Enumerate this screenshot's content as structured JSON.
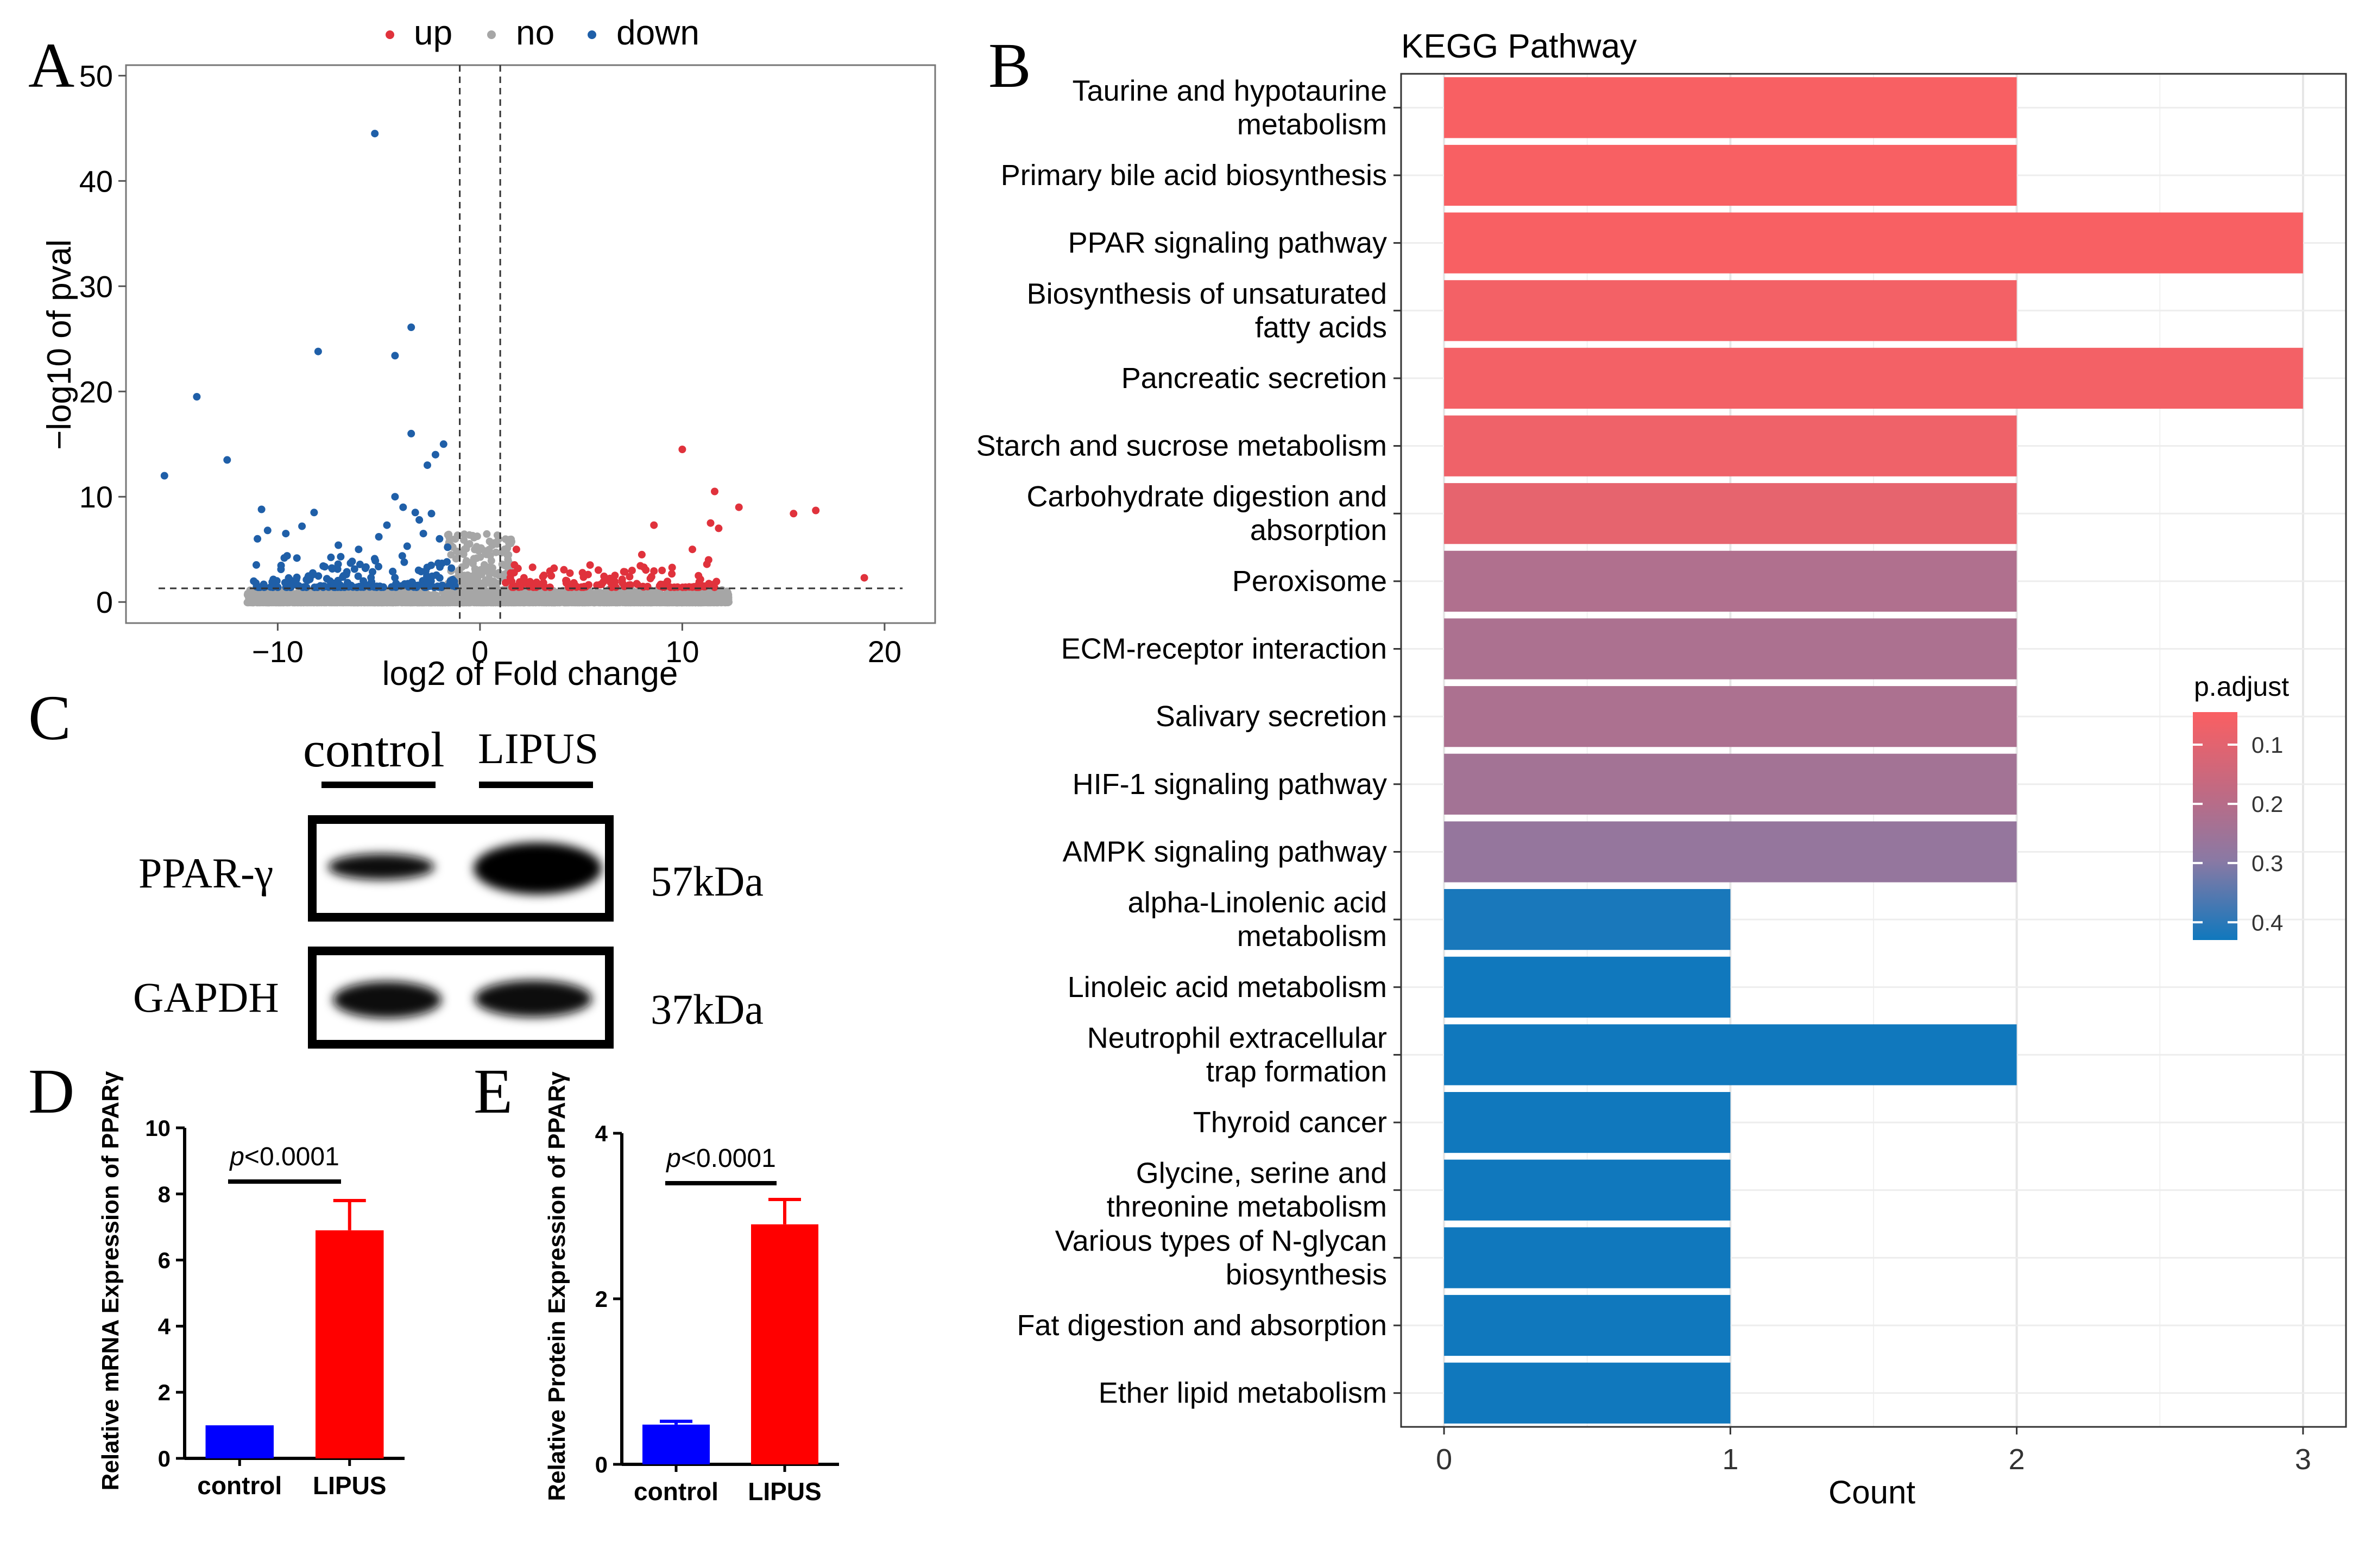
{
  "panel_letters": {
    "a": "A",
    "b": "B",
    "c": "C",
    "d": "D",
    "e": "E"
  },
  "colors": {
    "up": "#e0323c",
    "no": "#a6a6a6",
    "down": "#1f5fa8",
    "padj_low": "#fa5f62",
    "padj_high": "#1078bd",
    "bar_red": "#ff0000",
    "bar_blue": "#0000ff"
  },
  "chart_data": [
    {
      "id": "A",
      "type": "scatter",
      "title": "",
      "xlabel": "log2 of Fold change",
      "ylabel": "−log10 of pval",
      "xlim": [
        -17.5,
        22.5
      ],
      "ylim": [
        -2,
        51
      ],
      "xticks": [
        -10,
        0,
        10,
        20
      ],
      "yticks": [
        0,
        10,
        20,
        30,
        40,
        50
      ],
      "xtick_labels": [
        "−10",
        "0",
        "10",
        "20"
      ],
      "ytick_labels": [
        "0",
        "10",
        "20",
        "30",
        "40",
        "50"
      ],
      "thresholds": {
        "x": [
          -1,
          1
        ],
        "y": 1.3
      },
      "legend": [
        {
          "name": "up",
          "color": "#e0323c"
        },
        {
          "name": "no",
          "color": "#a6a6a6"
        },
        {
          "name": "down",
          "color": "#1f5fa8"
        }
      ],
      "highlight_points": [
        [
          -5.2,
          44.5
        ],
        [
          -3.4,
          26.1
        ],
        [
          -8.0,
          23.8
        ],
        [
          -4.2,
          23.4
        ],
        [
          -14.0,
          19.5
        ],
        [
          -15.6,
          12.0
        ],
        [
          -12.5,
          13.5
        ],
        [
          -3.4,
          16.0
        ],
        [
          -2.2,
          14.0
        ],
        [
          -2.6,
          13.0
        ],
        [
          -1.8,
          15.0
        ],
        [
          -10.8,
          8.8
        ],
        [
          -10.5,
          6.8
        ],
        [
          -9.6,
          6.5
        ],
        [
          -8.8,
          7.2
        ],
        [
          -8.2,
          8.5
        ],
        [
          -5.0,
          6.2
        ],
        [
          -4.6,
          7.3
        ],
        [
          -4.2,
          10.0
        ],
        [
          -3.8,
          9.0
        ],
        [
          -3.0,
          7.8
        ],
        [
          -2.8,
          6.5
        ],
        [
          -2.0,
          6.0
        ],
        [
          -1.6,
          5.2
        ],
        [
          -11.0,
          6.0
        ],
        [
          -7.0,
          5.4
        ],
        [
          -6.0,
          5.0
        ],
        [
          -3.6,
          5.3
        ],
        [
          -3.2,
          8.5
        ],
        [
          -2.4,
          8.4
        ],
        [
          10.0,
          14.5
        ],
        [
          11.6,
          10.5
        ],
        [
          12.8,
          9.0
        ],
        [
          11.4,
          7.5
        ],
        [
          11.8,
          7.0
        ],
        [
          15.5,
          8.4
        ],
        [
          16.6,
          8.7
        ],
        [
          19.0,
          2.3
        ],
        [
          8.6,
          7.3
        ],
        [
          8.0,
          4.5
        ],
        [
          11.3,
          4.0
        ],
        [
          10.5,
          5.0
        ],
        [
          1.8,
          5.0
        ],
        [
          2.6,
          3.3
        ],
        [
          9.0,
          3.0
        ],
        [
          10.8,
          2.5
        ]
      ]
    },
    {
      "id": "B",
      "type": "bar",
      "orientation": "horizontal",
      "title": "KEGG Pathway",
      "xlabel": "Count",
      "ylabel": "",
      "xlim": [
        -0.15,
        3.15
      ],
      "xticks": [
        0,
        1,
        2,
        3
      ],
      "categories": [
        "Taurine and hypotaurine metabolism",
        "Primary bile acid biosynthesis",
        "PPAR signaling pathway",
        "Biosynthesis of unsaturated fatty acids",
        "Pancreatic secretion",
        "Starch and sucrose metabolism",
        "Carbohydrate digestion and absorption",
        "Peroxisome",
        "ECM-receptor interaction",
        "Salivary secretion",
        "HIF-1 signaling pathway",
        "AMPK signaling pathway",
        "alpha-Linolenic acid metabolism",
        "Linoleic acid metabolism",
        "Neutrophil extracellular trap formation",
        "Thyroid cancer",
        "Glycine, serine and threonine metabolism",
        "Various types of N-glycan biosynthesis",
        "Fat digestion and absorption",
        "Ether lipid metabolism"
      ],
      "label_lines": [
        [
          "Taurine and hypotaurine",
          "metabolism"
        ],
        [
          "Primary bile acid biosynthesis"
        ],
        [
          "PPAR signaling pathway"
        ],
        [
          "Biosynthesis of unsaturated",
          "fatty acids"
        ],
        [
          "Pancreatic secretion"
        ],
        [
          "Starch and sucrose metabolism"
        ],
        [
          "Carbohydrate digestion and",
          "absorption"
        ],
        [
          "Peroxisome"
        ],
        [
          "ECM-receptor interaction"
        ],
        [
          "Salivary secretion"
        ],
        [
          "HIF-1 signaling pathway"
        ],
        [
          "AMPK signaling pathway"
        ],
        [
          "alpha-Linolenic acid",
          "metabolism"
        ],
        [
          "Linoleic acid metabolism"
        ],
        [
          "Neutrophil extracellular",
          "trap formation"
        ],
        [
          "Thyroid cancer"
        ],
        [
          "Glycine, serine and",
          "threonine metabolism"
        ],
        [
          "Various types of N-glycan",
          "biosynthesis"
        ],
        [
          "Fat digestion and absorption"
        ],
        [
          "Ether lipid metabolism"
        ]
      ],
      "values": [
        2,
        2,
        3,
        2,
        3,
        2,
        2,
        2,
        2,
        2,
        2,
        2,
        1,
        1,
        2,
        1,
        1,
        1,
        1,
        1
      ],
      "p_adjust": [
        0.05,
        0.05,
        0.05,
        0.06,
        0.06,
        0.07,
        0.09,
        0.21,
        0.22,
        0.22,
        0.24,
        0.27,
        0.42,
        0.43,
        0.43,
        0.43,
        0.43,
        0.43,
        0.43,
        0.43
      ],
      "legend": {
        "title": "p.adjust",
        "placement": "right",
        "range": [
          0.045,
          0.43
        ],
        "ticks": [
          0.1,
          0.2,
          0.3,
          0.4
        ],
        "tick_labels": [
          "0.1",
          "0.2",
          "0.3",
          "0.4"
        ]
      },
      "grid": true
    },
    {
      "id": "D",
      "type": "bar",
      "title": "",
      "ylabel": "Relative mRNA Expression of PPARγ",
      "categories": [
        "control",
        "LIPUS"
      ],
      "values": [
        1.0,
        6.9
      ],
      "errors": [
        0.0,
        0.9
      ],
      "colors": [
        "#0000ff",
        "#ff0000"
      ],
      "ylim": [
        0,
        10
      ],
      "yticks": [
        0,
        2,
        4,
        6,
        8,
        10
      ],
      "annotation": {
        "italic": "p",
        "rest": "<0.0001"
      }
    },
    {
      "id": "E",
      "type": "bar",
      "title": "",
      "ylabel": "Relative Protein Expression of PPARγ",
      "categories": [
        "control",
        "LIPUS"
      ],
      "values": [
        0.48,
        2.9
      ],
      "errors": [
        0.04,
        0.3
      ],
      "colors": [
        "#0000ff",
        "#ff0000"
      ],
      "ylim": [
        0,
        4
      ],
      "yticks": [
        0,
        2,
        4
      ],
      "annotation": {
        "italic": "p",
        "rest": "<0.0001"
      }
    }
  ],
  "western_blot": {
    "lane_labels": [
      "control",
      "LIPUS"
    ],
    "rows": [
      {
        "protein": "PPAR-γ",
        "size": "57kDa"
      },
      {
        "protein": "GAPDH",
        "size": "37kDa"
      }
    ]
  }
}
